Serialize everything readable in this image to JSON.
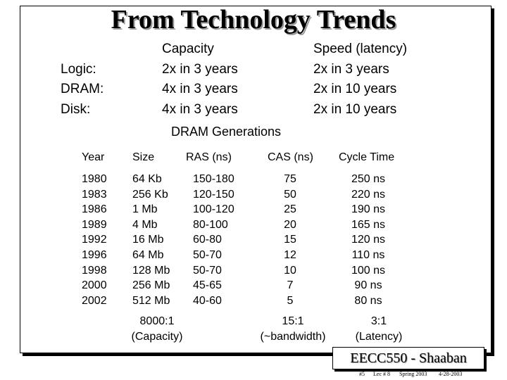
{
  "title": "From Technology Trends",
  "trends": {
    "capacity_header": "Capacity",
    "speed_header": "Speed (latency)",
    "rows": [
      {
        "label": "Logic:",
        "capacity": "2x in 3 years",
        "speed": "2x in 3 years"
      },
      {
        "label": "DRAM:",
        "capacity": "4x in 3 years",
        "speed": "2x in 10 years"
      },
      {
        "label": "Disk:",
        "capacity": "4x in 3 years",
        "speed": "2x in 10 years"
      }
    ]
  },
  "dram": {
    "heading": "DRAM Generations",
    "headers": {
      "year": "Year",
      "size": "Size",
      "ras": "RAS (ns)",
      "cas": "CAS (ns)",
      "cycle": "Cycle Time"
    },
    "years": [
      "1980",
      "1983",
      "1986",
      "1989",
      "1992",
      "1996",
      "1998",
      "2000",
      "2002"
    ],
    "sizes": [
      "64 Kb",
      "256 Kb",
      "1 Mb",
      "4 Mb",
      "16 Mb",
      "64 Mb",
      "128 Mb",
      "256 Mb",
      "512 Mb"
    ],
    "ras": [
      "150-180",
      "120-150",
      "100-120",
      "80-100",
      "60-80",
      "50-70",
      "50-70",
      "45-65",
      "40-60"
    ],
    "cas": [
      "75",
      "50",
      "25",
      "20",
      "15",
      "12",
      "10",
      "7",
      "5"
    ],
    "cycle": [
      "250 ns",
      "220 ns",
      "190 ns",
      "165 ns",
      "120 ns",
      "110 ns",
      "100 ns",
      "90 ns",
      "80 ns"
    ],
    "ratios": {
      "capacity_ratio": "8000:1",
      "capacity_label": "(Capacity)",
      "bandwidth_ratio": "15:1",
      "bandwidth_label": "(~bandwidth)",
      "latency_ratio": "3:1",
      "latency_label": "(Latency)"
    }
  },
  "footer": {
    "course": "EECC550 - Shaaban",
    "slide": "#5",
    "lecture": "Lec # 8",
    "term": "Spring 2003",
    "date": "4-28-2003"
  }
}
